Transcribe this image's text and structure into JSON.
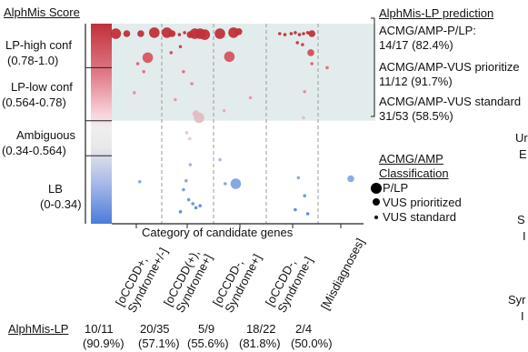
{
  "chart_data": {
    "type": "scatter",
    "y_axis_title": "AlphMis Score",
    "x_axis_title": "Category of candidate genes",
    "score_bands": [
      {
        "label": "LP-high conf",
        "range": "(0.78-1.0)"
      },
      {
        "label": "LP-low conf",
        "range": "(0.564-0.78)"
      },
      {
        "label": "Ambiguous",
        "range": "(0.34-0.564)"
      },
      {
        "label": "LB",
        "range": "(0-0.34)"
      }
    ],
    "ylim": [
      0,
      1
    ],
    "categories": [
      {
        "line1": "[oCCDD+,",
        "line2": "Syndrome+/-]"
      },
      {
        "line1": "[oCCDD(+),",
        "line2": "Syndrome+]"
      },
      {
        "line1": "[oCCDD-,",
        "line2": "Syndrome+]"
      },
      {
        "line1": "[oCCDD-,",
        "line2": "Syndrome-]"
      },
      {
        "line1": "[Misdiagnoses]",
        "line2": ""
      }
    ],
    "bottom_row_label": "AlphMis-LP",
    "bottom_row": [
      {
        "count": "10/11",
        "pct": "(90.9%)"
      },
      {
        "count": "20/35",
        "pct": "(57.1%)"
      },
      {
        "count": "5/9",
        "pct": "(55.6%)"
      },
      {
        "count": "18/22",
        "pct": "(81.8%)"
      },
      {
        "count": "2/4",
        "pct": "(50.0%)"
      }
    ],
    "prediction_title": "AlphMis-LP prediction",
    "predictions": [
      {
        "label": "ACMG/AMP-P/LP:",
        "value": "14/17 (82.4%)"
      },
      {
        "label": "ACMG/AMP-VUS prioritize",
        "value": "11/12 (91.7%)"
      },
      {
        "label": "ACMG/AMP-VUS standard",
        "value": "31/53 (58.5%)"
      }
    ],
    "legend_title": [
      "ACMG/AMP",
      "Classification"
    ],
    "legend": [
      {
        "label": "P/LP",
        "size": "large"
      },
      {
        "label": "VUS prioritized",
        "size": "medium"
      },
      {
        "label": "VUS standard",
        "size": "small"
      }
    ],
    "edge_fragments": [
      "Ur",
      "E",
      "S",
      "I",
      "Syr",
      "I"
    ],
    "colors": {
      "high": "#c0303a",
      "low_pink": "#f0a8b8",
      "ambiguous": "#b8b8b8",
      "lb": "#4a7cd8",
      "shade": "#e3ecec"
    },
    "points": [
      {
        "c": 0,
        "x": 0.08,
        "y": 0.95,
        "s": "l"
      },
      {
        "c": 0,
        "x": 0.3,
        "y": 0.95,
        "s": "m"
      },
      {
        "c": 0,
        "x": 0.58,
        "y": 0.95,
        "s": "m"
      },
      {
        "c": 0,
        "x": 0.85,
        "y": 0.955,
        "s": "l"
      },
      {
        "c": 0,
        "x": 0.72,
        "y": 0.83,
        "s": "l"
      },
      {
        "c": 0,
        "x": 0.52,
        "y": 0.8,
        "s": "s"
      },
      {
        "c": 0,
        "x": 0.64,
        "y": 0.76,
        "s": "s"
      },
      {
        "c": 0,
        "x": 0.45,
        "y": 0.655,
        "s": "s"
      },
      {
        "c": 0,
        "x": 0.56,
        "y": 0.21,
        "s": "s"
      },
      {
        "c": 1,
        "x": 0.1,
        "y": 0.955,
        "s": "l"
      },
      {
        "c": 1,
        "x": 0.2,
        "y": 0.95,
        "s": "m"
      },
      {
        "c": 1,
        "x": 0.34,
        "y": 0.945,
        "s": "s"
      },
      {
        "c": 1,
        "x": 0.44,
        "y": 0.955,
        "s": "s"
      },
      {
        "c": 1,
        "x": 0.55,
        "y": 0.945,
        "s": "m"
      },
      {
        "c": 1,
        "x": 0.64,
        "y": 0.95,
        "s": "l"
      },
      {
        "c": 1,
        "x": 0.74,
        "y": 0.95,
        "s": "l"
      },
      {
        "c": 1,
        "x": 0.83,
        "y": 0.945,
        "s": "l"
      },
      {
        "c": 1,
        "x": 0.36,
        "y": 0.885,
        "s": "s"
      },
      {
        "c": 1,
        "x": 0.18,
        "y": 0.855,
        "s": "s"
      },
      {
        "c": 1,
        "x": 0.42,
        "y": 0.76,
        "s": "s"
      },
      {
        "c": 1,
        "x": 0.58,
        "y": 0.7,
        "s": "s"
      },
      {
        "c": 1,
        "x": 0.26,
        "y": 0.62,
        "s": "s"
      },
      {
        "c": 1,
        "x": 0.66,
        "y": 0.55,
        "s": "m"
      },
      {
        "c": 1,
        "x": 0.72,
        "y": 0.53,
        "s": "l"
      },
      {
        "c": 1,
        "x": 0.48,
        "y": 0.455,
        "s": "s"
      },
      {
        "c": 1,
        "x": 0.54,
        "y": 0.425,
        "s": "s"
      },
      {
        "c": 1,
        "x": 0.55,
        "y": 0.295,
        "s": "s"
      },
      {
        "c": 1,
        "x": 0.47,
        "y": 0.215,
        "s": "s"
      },
      {
        "c": 1,
        "x": 0.42,
        "y": 0.17,
        "s": "s"
      },
      {
        "c": 1,
        "x": 0.52,
        "y": 0.12,
        "s": "s"
      },
      {
        "c": 1,
        "x": 0.6,
        "y": 0.1,
        "s": "s"
      },
      {
        "c": 1,
        "x": 0.66,
        "y": 0.08,
        "s": "s"
      },
      {
        "c": 1,
        "x": 0.36,
        "y": 0.06,
        "s": "s"
      },
      {
        "c": 1,
        "x": 0.74,
        "y": 0.09,
        "s": "s"
      },
      {
        "c": 2,
        "x": 0.12,
        "y": 0.95,
        "s": "l"
      },
      {
        "c": 2,
        "x": 0.38,
        "y": 0.955,
        "s": "l"
      },
      {
        "c": 2,
        "x": 0.48,
        "y": 0.96,
        "s": "m"
      },
      {
        "c": 2,
        "x": 0.3,
        "y": 0.835,
        "s": "l"
      },
      {
        "c": 2,
        "x": 0.7,
        "y": 0.63,
        "s": "s"
      },
      {
        "c": 2,
        "x": 0.2,
        "y": 0.565,
        "s": "s"
      },
      {
        "c": 2,
        "x": 0.12,
        "y": 0.32,
        "s": "s"
      },
      {
        "c": 2,
        "x": 0.22,
        "y": 0.2,
        "s": "s"
      },
      {
        "c": 2,
        "x": 0.42,
        "y": 0.2,
        "s": "l"
      },
      {
        "c": 3,
        "x": 0.26,
        "y": 0.95,
        "s": "s"
      },
      {
        "c": 3,
        "x": 0.36,
        "y": 0.945,
        "s": "s"
      },
      {
        "c": 3,
        "x": 0.48,
        "y": 0.95,
        "s": "s"
      },
      {
        "c": 3,
        "x": 0.56,
        "y": 0.955,
        "s": "s"
      },
      {
        "c": 3,
        "x": 0.64,
        "y": 0.945,
        "s": "s"
      },
      {
        "c": 3,
        "x": 0.72,
        "y": 0.95,
        "s": "s"
      },
      {
        "c": 3,
        "x": 0.8,
        "y": 0.955,
        "s": "s"
      },
      {
        "c": 3,
        "x": 0.88,
        "y": 0.95,
        "s": "m"
      },
      {
        "c": 3,
        "x": 0.6,
        "y": 0.905,
        "s": "s"
      },
      {
        "c": 3,
        "x": 0.7,
        "y": 0.895,
        "s": "s"
      },
      {
        "c": 3,
        "x": 0.86,
        "y": 0.855,
        "s": "m"
      },
      {
        "c": 3,
        "x": 0.88,
        "y": 0.8,
        "s": "s"
      },
      {
        "c": 3,
        "x": 0.74,
        "y": 0.66,
        "s": "s"
      },
      {
        "c": 3,
        "x": 0.72,
        "y": 0.53,
        "s": "s"
      },
      {
        "c": 3,
        "x": 0.62,
        "y": 0.23,
        "s": "s"
      },
      {
        "c": 3,
        "x": 0.74,
        "y": 0.14,
        "s": "s"
      },
      {
        "c": 3,
        "x": 0.56,
        "y": 0.07,
        "s": "s"
      },
      {
        "c": 3,
        "x": 0.8,
        "y": 0.05,
        "s": "s"
      },
      {
        "c": 4,
        "x": 0.2,
        "y": 0.78,
        "s": "s"
      },
      {
        "c": 4,
        "x": 0.72,
        "y": 0.225,
        "s": "m"
      }
    ]
  }
}
